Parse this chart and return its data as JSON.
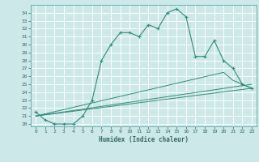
{
  "title": "",
  "xlabel": "Humidex (Indice chaleur)",
  "background_color": "#cce8e8",
  "grid_color": "#ffffff",
  "line_color": "#2e8b7a",
  "xlim": [
    -0.5,
    23.5
  ],
  "ylim": [
    19.7,
    35.0
  ],
  "yticks": [
    20,
    21,
    22,
    23,
    24,
    25,
    26,
    27,
    28,
    29,
    30,
    31,
    32,
    33,
    34
  ],
  "xticks": [
    0,
    1,
    2,
    3,
    4,
    5,
    6,
    7,
    8,
    9,
    10,
    11,
    12,
    13,
    14,
    15,
    16,
    17,
    18,
    19,
    20,
    21,
    22,
    23
  ],
  "series1_x": [
    0,
    1,
    2,
    3,
    4,
    5,
    6,
    7,
    8,
    9,
    10,
    11,
    12,
    13,
    14,
    15,
    16,
    17,
    18,
    19,
    20,
    21,
    22,
    23
  ],
  "series1_y": [
    21.5,
    20.5,
    20.0,
    20.0,
    20.0,
    21.0,
    23.0,
    28.0,
    30.0,
    31.5,
    31.5,
    31.0,
    32.5,
    32.0,
    34.0,
    34.5,
    33.5,
    28.5,
    28.5,
    30.5,
    28.0,
    27.0,
    25.0,
    24.5
  ],
  "series2_x": [
    0,
    23
  ],
  "series2_y": [
    21.0,
    25.0
  ],
  "series3_x": [
    0,
    23
  ],
  "series3_y": [
    21.0,
    24.5
  ],
  "series4_x": [
    0,
    20,
    21,
    22,
    23
  ],
  "series4_y": [
    21.0,
    26.5,
    25.5,
    25.0,
    24.5
  ],
  "tick_color": "#336666",
  "tick_fontsize": 4.5,
  "xlabel_fontsize": 5.5
}
